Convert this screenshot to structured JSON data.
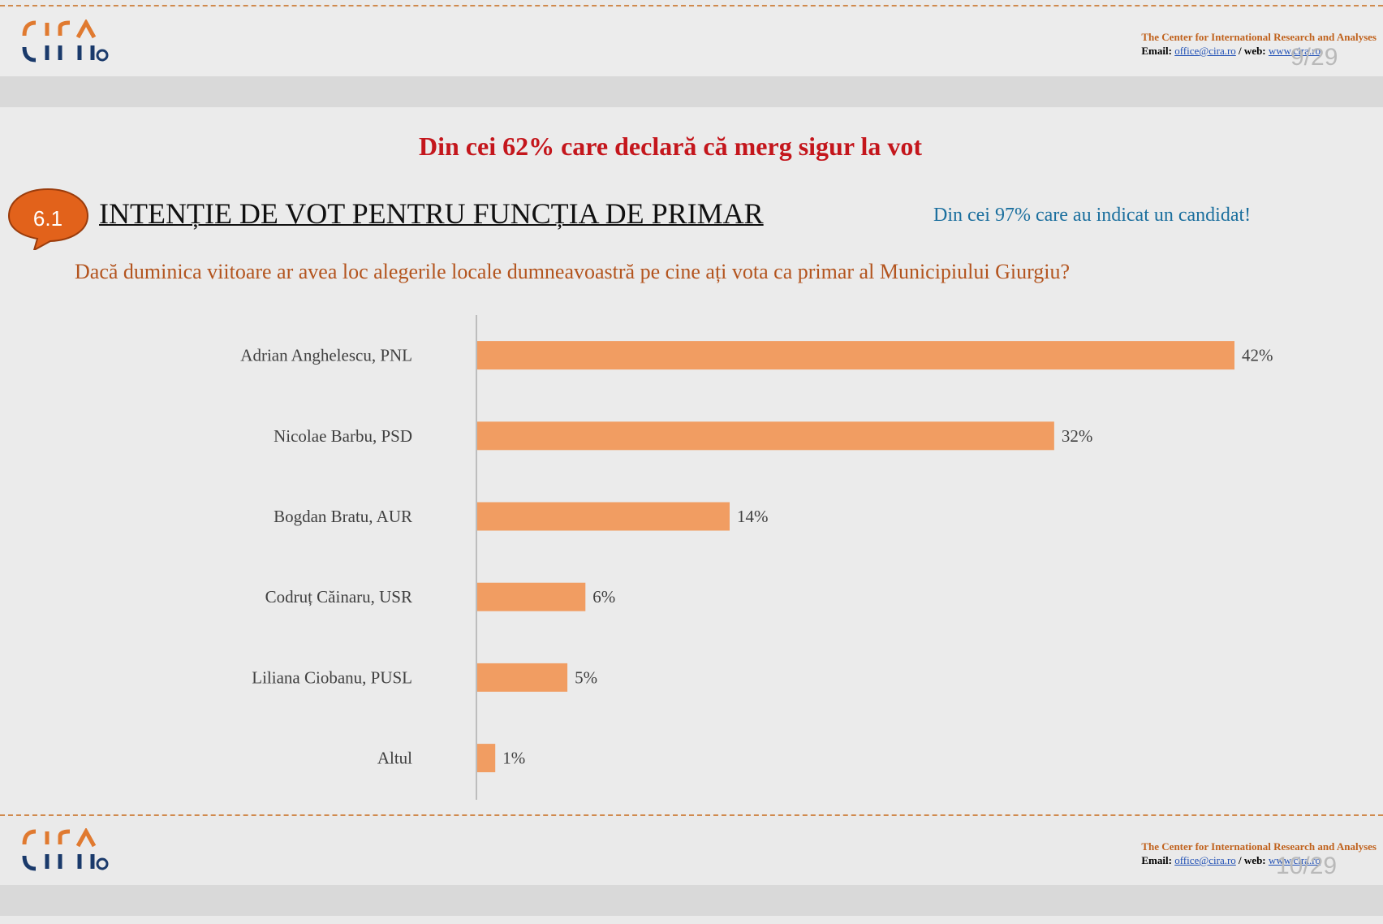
{
  "header": {
    "org_name": "The Center for International Research and Analyses",
    "email_label": "Email:",
    "email": "office@cira.ro",
    "web_label": "/ web:",
    "web": "www.cira.ro",
    "page_number": "9/29",
    "logo_text": "cira"
  },
  "footer": {
    "org_name": "The Center for International Research and Analyses",
    "email_label": "Email:",
    "email": "office@cira.ro",
    "web_label": "/ web:",
    "web": "www.cira.ro",
    "page_number": "10/29",
    "logo_text": "cira"
  },
  "slide": {
    "headline": "Din cei 62% care declară că merg sigur la vot",
    "section_number": "6.1",
    "section_title": "INTENȚIE DE VOT PENTRU FUNCȚIA DE PRIMAR",
    "note": "Din cei 97% care au indicat un candidat!",
    "question": "Dacă duminica viitoare ar avea loc alegerile locale dumneavoastră pe cine ați vota ca primar al Municipiului Giurgiu?"
  },
  "colors": {
    "bar": "#f19d62",
    "headline": "#c4161c",
    "bubble": "#e2621b",
    "question": "#b3541e",
    "note": "#1b6f9e"
  },
  "chart_data": {
    "type": "bar",
    "orientation": "horizontal",
    "categories": [
      "Adrian Anghelescu, PNL",
      "Nicolae Barbu, PSD",
      "Bogdan Bratu, AUR",
      "Codruț Căinaru, USR",
      "Liliana Ciobanu, PUSL",
      "Altul"
    ],
    "values": [
      42,
      32,
      14,
      6,
      5,
      1
    ],
    "value_labels": [
      "42%",
      "32%",
      "14%",
      "6%",
      "5%",
      "1%"
    ],
    "unit": "%",
    "xlim": [
      0,
      42
    ],
    "grid": false,
    "legend": "none"
  }
}
